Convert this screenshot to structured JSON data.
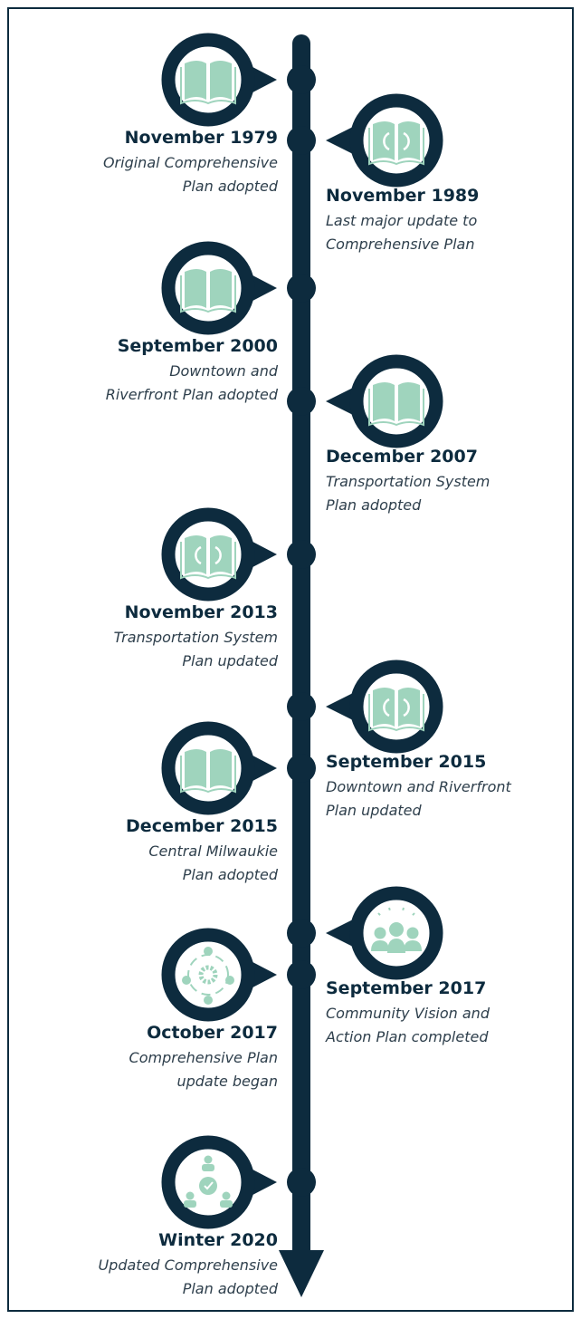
{
  "events": [
    {
      "date": "November 1979",
      "description": [
        "Original Comprehensive",
        "Plan adopted"
      ]
    },
    {
      "date": "November 1989",
      "description": [
        "Last major update to",
        "Comprehensive Plan"
      ]
    },
    {
      "date": "September 2000",
      "description": [
        "Downtown and",
        "Riverfront Plan adopted"
      ]
    },
    {
      "date": "December 2007",
      "description": [
        "Transportation System",
        "Plan adopted"
      ]
    },
    {
      "date": "November 2013",
      "description": [
        "Transportation System",
        "Plan updated"
      ]
    },
    {
      "date": "September 2015",
      "description": [
        "Downtown and Riverfront",
        "Plan updated"
      ]
    },
    {
      "date": "December 2015",
      "description": [
        "Central Milwaukie",
        "Plan adopted"
      ]
    },
    {
      "date": "September 2017",
      "description": [
        "Community Vision and",
        "Action Plan completed"
      ]
    },
    {
      "date": "October 2017",
      "description": [
        "Comprehensive Plan",
        "update began"
      ]
    },
    {
      "date": "Winter 2020",
      "description": [
        "Updated Comprehensive",
        "Plan adopted"
      ]
    }
  ]
}
